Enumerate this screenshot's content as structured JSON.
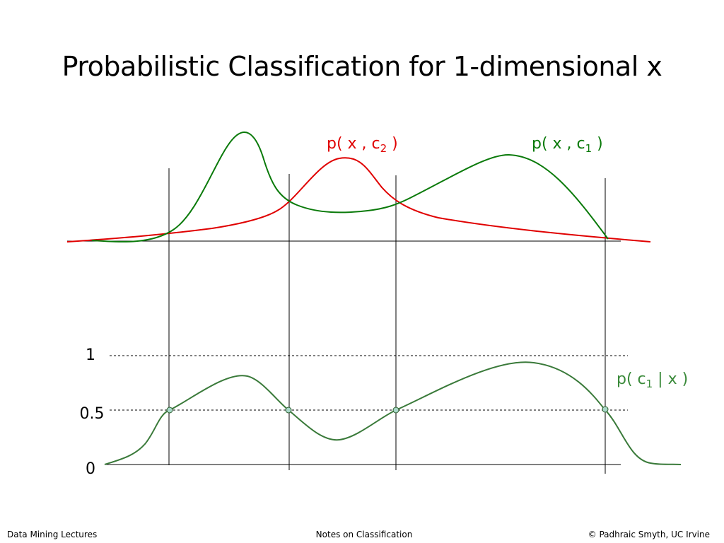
{
  "slide": {
    "title": "Probabilistic Classification for 1-dimensional x"
  },
  "labels": {
    "joint_c2": {
      "prefix": "p( x , c",
      "sub": "2",
      "suffix": " )",
      "color": "#e00000"
    },
    "joint_c1": {
      "prefix": "p( x , c",
      "sub": "1",
      "suffix": " )",
      "color": "#0a7a0a"
    },
    "posterior_c1": {
      "prefix": "p( c",
      "sub": "1",
      "suffix": " | x )",
      "color": "#3a8a3a"
    }
  },
  "lower_axis": {
    "tick_labels": [
      "1",
      "0.5",
      "0"
    ]
  },
  "colors": {
    "joint_c1_curve": "#0a7a0a",
    "joint_c2_curve": "#e00000",
    "posterior_curve": "#3a7a3a",
    "crossing_marker": "#a8d8c8",
    "axis": "#000000"
  },
  "footer": {
    "left": "Data Mining Lectures",
    "center": "Notes on Classification",
    "right": "© Padhraic Smyth, UC Irvine"
  }
}
